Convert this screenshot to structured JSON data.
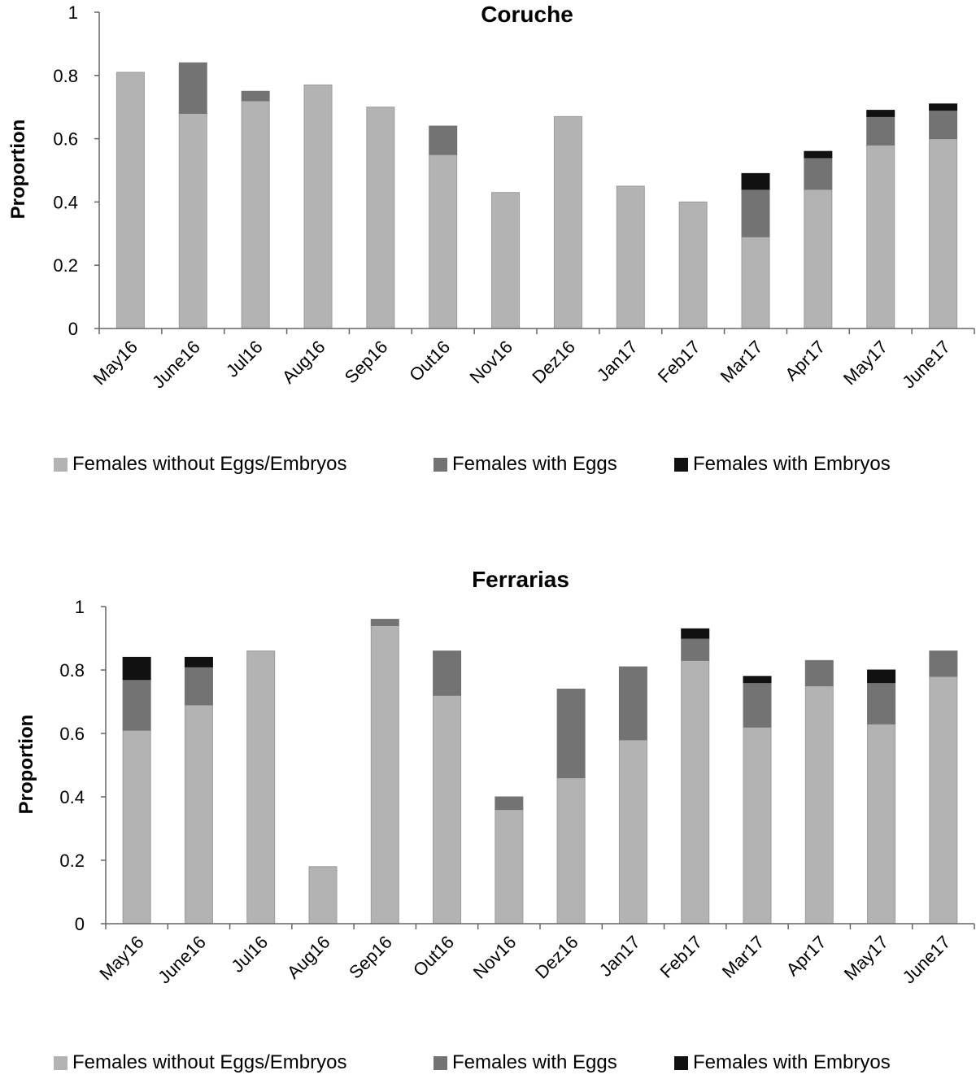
{
  "chart_data": [
    {
      "type": "bar",
      "stacked": true,
      "title": "Coruche",
      "xlabel": "",
      "ylabel": "Proportion",
      "ylim": [
        0,
        1
      ],
      "yticks": [
        "0",
        "0.2",
        "0.4",
        "0.6",
        "0.8",
        "1"
      ],
      "grid": false,
      "legend_position": "bottom",
      "categories": [
        "May16",
        "June16",
        "Jul16",
        "Aug16",
        "Sep16",
        "Out16",
        "Nov16",
        "Dez16",
        "Jan17",
        "Feb17",
        "Mar17",
        "Apr17",
        "May17",
        "June17"
      ],
      "series": [
        {
          "name": "Females without Eggs/Embryos",
          "color": "#b3b3b3",
          "values": [
            0.81,
            0.68,
            0.72,
            0.77,
            0.7,
            0.55,
            0.43,
            0.67,
            0.45,
            0.4,
            0.29,
            0.44,
            0.58,
            0.6
          ]
        },
        {
          "name": "Females with Eggs",
          "color": "#737373",
          "values": [
            0,
            0.16,
            0.03,
            0,
            0,
            0.09,
            0,
            0,
            0,
            0,
            0.15,
            0.1,
            0.09,
            0.09
          ]
        },
        {
          "name": "Females with Embryos",
          "color": "#111111",
          "values": [
            0,
            0,
            0,
            0,
            0,
            0,
            0,
            0,
            0,
            0,
            0.05,
            0.02,
            0.02,
            0.02
          ]
        }
      ]
    },
    {
      "type": "bar",
      "stacked": true,
      "title": "Ferrarias",
      "xlabel": "",
      "ylabel": "Proportion",
      "ylim": [
        0,
        1
      ],
      "yticks": [
        "0",
        "0.2",
        "0.4",
        "0.6",
        "0.8",
        "1"
      ],
      "grid": false,
      "legend_position": "bottom",
      "categories": [
        "May16",
        "June16",
        "Jul16",
        "Aug16",
        "Sep16",
        "Out16",
        "Nov16",
        "Dez16",
        "Jan17",
        "Feb17",
        "Mar17",
        "Apr17",
        "May17",
        "June17"
      ],
      "series": [
        {
          "name": "Females without Eggs/Embryos",
          "color": "#b3b3b3",
          "values": [
            0.61,
            0.69,
            0.86,
            0.18,
            0.94,
            0.72,
            0.36,
            0.46,
            0.58,
            0.83,
            0.62,
            0.75,
            0.63,
            0.78
          ]
        },
        {
          "name": "Females with Eggs",
          "color": "#737373",
          "values": [
            0.16,
            0.12,
            0,
            0,
            0.02,
            0.14,
            0.04,
            0.28,
            0.23,
            0.07,
            0.14,
            0.08,
            0.13,
            0.08
          ]
        },
        {
          "name": "Females with Embryos",
          "color": "#111111",
          "values": [
            0.07,
            0.03,
            0,
            0,
            0,
            0,
            0,
            0,
            0,
            0.03,
            0.02,
            0,
            0.04,
            0
          ]
        }
      ]
    }
  ]
}
